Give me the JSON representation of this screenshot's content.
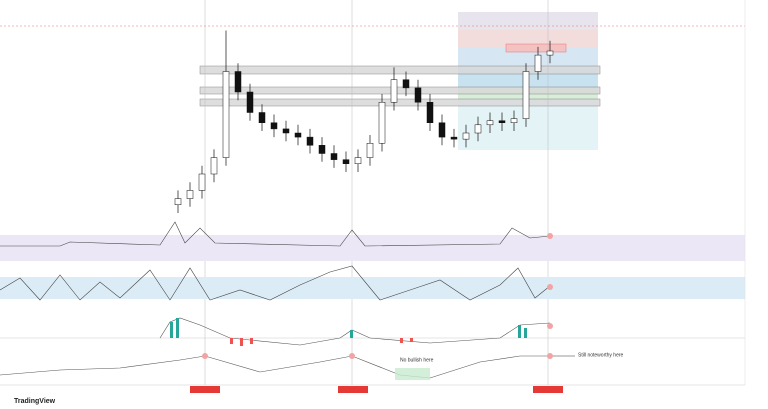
{
  "chart_data": {
    "type": "candlestick",
    "open": [
      5,
      8,
      12,
      20,
      28,
      70,
      60,
      50,
      45,
      42,
      40,
      38,
      34,
      30,
      27,
      25,
      28,
      35,
      55,
      66,
      62,
      55,
      45,
      38,
      37,
      40,
      44,
      46,
      45,
      47,
      70,
      78
    ],
    "high": [
      12,
      16,
      24,
      32,
      90,
      74,
      64,
      54,
      49,
      46,
      44,
      42,
      38,
      34,
      31,
      32,
      39,
      59,
      72,
      70,
      66,
      59,
      49,
      42,
      44,
      48,
      50,
      50,
      51,
      74,
      82,
      85
    ],
    "low": [
      1,
      4,
      8,
      16,
      24,
      56,
      46,
      41,
      38,
      36,
      34,
      30,
      26,
      23,
      21,
      21,
      24,
      31,
      51,
      58,
      51,
      41,
      34,
      33,
      33,
      36,
      40,
      41,
      41,
      43,
      66,
      74
    ],
    "close": [
      8,
      12,
      20,
      28,
      70,
      60,
      50,
      45,
      42,
      40,
      38,
      34,
      30,
      27,
      25,
      28,
      35,
      55,
      66,
      62,
      55,
      45,
      38,
      37,
      40,
      44,
      46,
      45,
      47,
      70,
      78,
      80
    ],
    "ylim": [
      0,
      100
    ],
    "up_color": "#ffffff",
    "down_color": "#111111",
    "annotations": [
      "No bullish here",
      "Still noteworthy here"
    ],
    "brand": "TradingView"
  }
}
